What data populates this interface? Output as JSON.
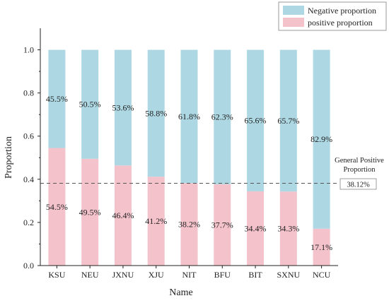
{
  "chart_data": {
    "type": "bar",
    "stacked": true,
    "xlabel": "Name",
    "ylabel": "Proportion",
    "ylim": [
      0,
      1.1
    ],
    "yticks": [
      "0.0",
      "0.2",
      "0.4",
      "0.6",
      "0.8",
      "1.0"
    ],
    "categories": [
      "KSU",
      "NEU",
      "JXNU",
      "XJU",
      "NIT",
      "BFU",
      "BIT",
      "SXNU",
      "NCU"
    ],
    "series": [
      {
        "name": "positive proportion",
        "color": "#f4c2cb",
        "values": [
          0.545,
          0.495,
          0.464,
          0.412,
          0.382,
          0.377,
          0.344,
          0.343,
          0.171
        ],
        "labels": [
          "54.5%",
          "49.5%",
          "46.4%",
          "41.2%",
          "38.2%",
          "37.7%",
          "34.4%",
          "34.3%",
          "17.1%"
        ]
      },
      {
        "name": "Negative proportion",
        "color": "#add8e3",
        "values": [
          0.455,
          0.505,
          0.536,
          0.588,
          0.618,
          0.623,
          0.656,
          0.657,
          0.829
        ],
        "labels": [
          "45.5%",
          "50.5%",
          "53.6%",
          "58.8%",
          "61.8%",
          "62.3%",
          "65.6%",
          "65.7%",
          "82.9%"
        ]
      }
    ],
    "legend": {
      "placement": "top-right",
      "entries": [
        "Negative proportion",
        "positive proportion"
      ]
    },
    "reference_line": {
      "value": 0.3812,
      "label_line1": "General Positive",
      "label_line2": "Proportion",
      "value_label": "38.12%",
      "style": "dashed"
    },
    "grid": false
  }
}
